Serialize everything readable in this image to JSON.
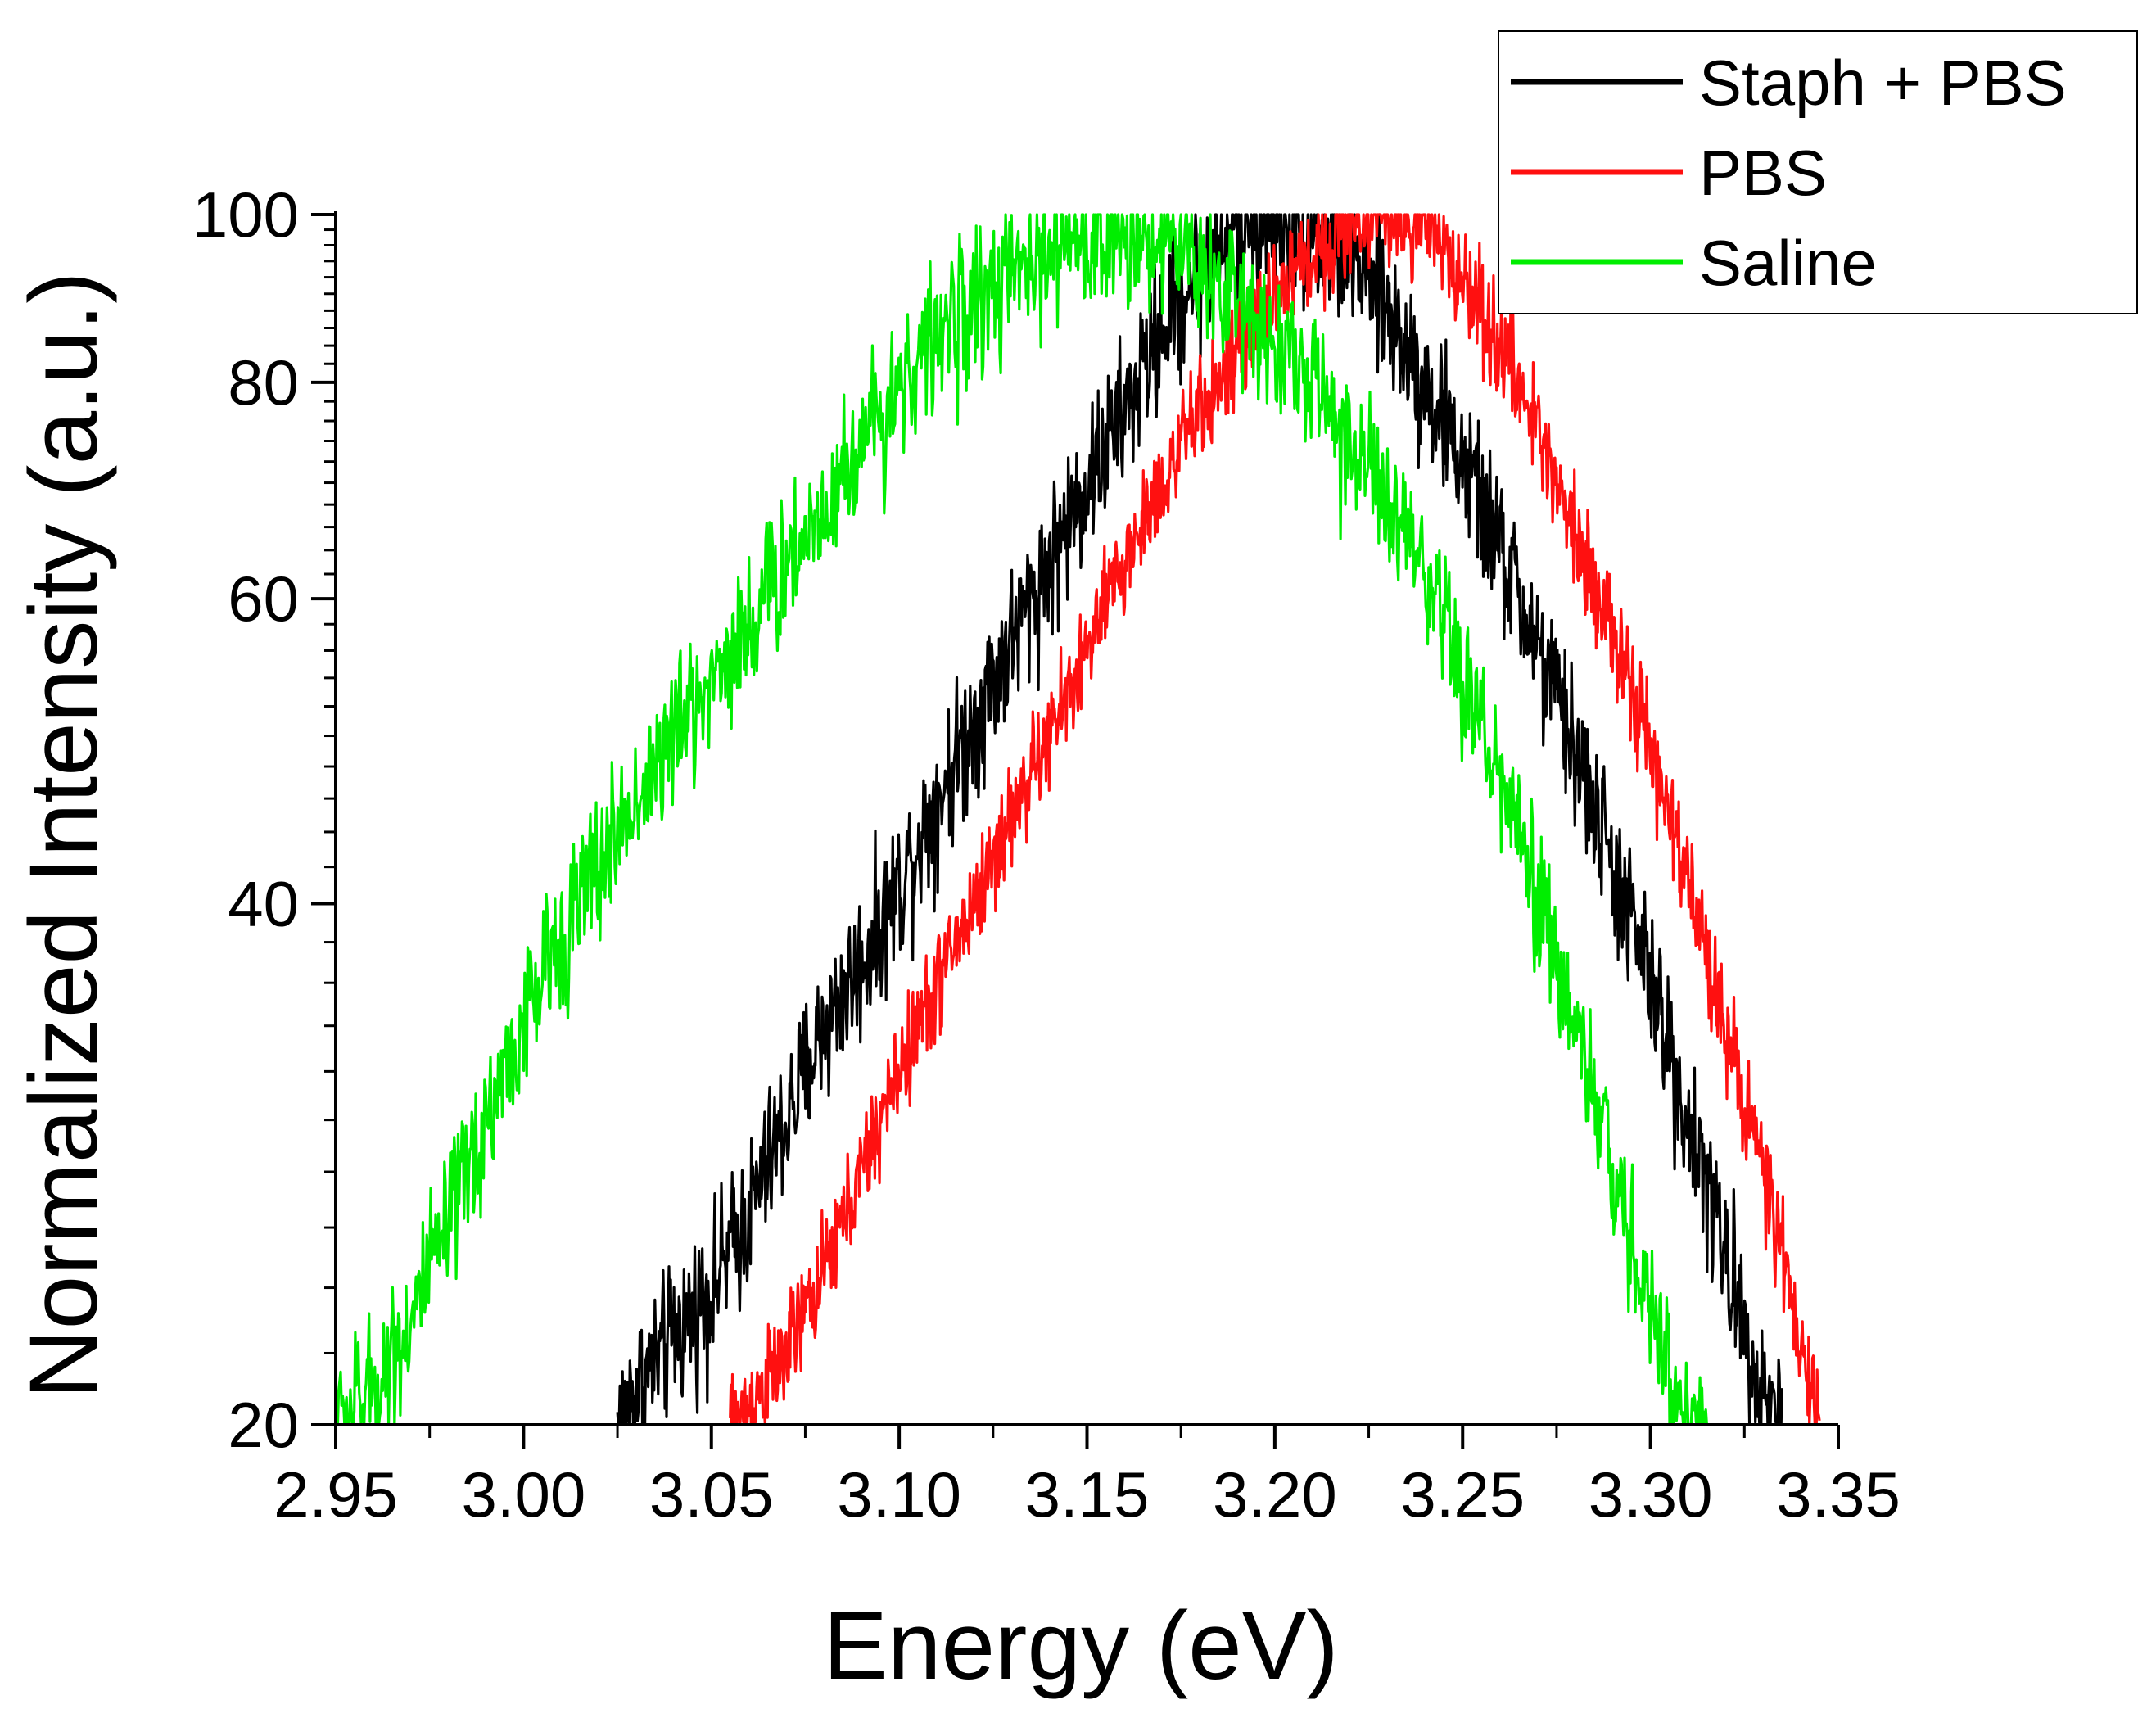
{
  "chart_data": {
    "type": "line",
    "title": "",
    "xlabel": "Energy (eV)",
    "ylabel": "Normalized Intensity (a.u.)",
    "xlim": [
      2.95,
      3.35
    ],
    "ylim": [
      20,
      100
    ],
    "yscale": "log",
    "xticks": [
      2.95,
      3.0,
      3.05,
      3.1,
      3.15,
      3.2,
      3.25,
      3.3,
      3.35
    ],
    "xtick_labels": [
      "2.95",
      "3.00",
      "3.05",
      "3.10",
      "3.15",
      "3.20",
      "3.25",
      "3.30",
      "3.35"
    ],
    "yticks": [
      20,
      40,
      60,
      80,
      100
    ],
    "ytick_labels": [
      "20",
      "40",
      "60",
      "80",
      "100"
    ],
    "legend_position": "top-right",
    "series": [
      {
        "name": "Staph + PBS",
        "color": "#000000",
        "noise": 0.05,
        "x": [
          3.025,
          3.03,
          3.04,
          3.05,
          3.06,
          3.07,
          3.08,
          3.09,
          3.1,
          3.11,
          3.12,
          3.13,
          3.14,
          3.15,
          3.16,
          3.17,
          3.18,
          3.19,
          3.2,
          3.21,
          3.22,
          3.23,
          3.24,
          3.25,
          3.26,
          3.27,
          3.28,
          3.29,
          3.3,
          3.31,
          3.32,
          3.33,
          3.335
        ],
        "y": [
          20,
          21,
          22.5,
          24,
          26.5,
          30,
          34,
          37,
          41,
          46,
          51,
          57,
          63,
          70,
          77,
          86,
          93,
          98,
          100,
          98,
          95,
          88,
          80,
          72,
          64,
          56,
          49,
          42,
          36,
          30,
          25,
          21,
          20
        ]
      },
      {
        "name": "PBS",
        "color": "#ff1010",
        "noise": 0.035,
        "x": [
          3.055,
          3.06,
          3.07,
          3.08,
          3.09,
          3.1,
          3.11,
          3.12,
          3.13,
          3.14,
          3.15,
          3.16,
          3.17,
          3.18,
          3.19,
          3.2,
          3.21,
          3.22,
          3.23,
          3.24,
          3.25,
          3.26,
          3.27,
          3.28,
          3.29,
          3.3,
          3.31,
          3.32,
          3.33,
          3.34,
          3.345
        ],
        "y": [
          20,
          20.5,
          22,
          24.5,
          28,
          32,
          36,
          40,
          45,
          50,
          56,
          63,
          70,
          77,
          83,
          90,
          95,
          99,
          100,
          98,
          92,
          84,
          75,
          66,
          57,
          49,
          41,
          34,
          28,
          22,
          20
        ]
      },
      {
        "name": "Saline",
        "color": "#00ee00",
        "noise": 0.05,
        "x": [
          2.95,
          2.96,
          2.97,
          2.98,
          2.99,
          3.0,
          3.01,
          3.02,
          3.03,
          3.04,
          3.05,
          3.06,
          3.07,
          3.08,
          3.09,
          3.1,
          3.11,
          3.12,
          3.13,
          3.14,
          3.15,
          3.16,
          3.17,
          3.18,
          3.19,
          3.2,
          3.21,
          3.22,
          3.23,
          3.24,
          3.25,
          3.26,
          3.27,
          3.28,
          3.29,
          3.3,
          3.31,
          3.315
        ],
        "y": [
          20,
          21,
          23,
          26,
          30,
          34,
          38.5,
          42,
          46,
          50,
          54,
          58,
          63,
          68,
          74,
          80,
          85,
          89,
          92,
          95,
          97,
          98,
          97,
          94,
          89,
          85,
          80,
          74,
          68,
          61,
          54,
          47,
          40,
          34,
          28,
          23,
          20,
          20
        ]
      }
    ]
  }
}
